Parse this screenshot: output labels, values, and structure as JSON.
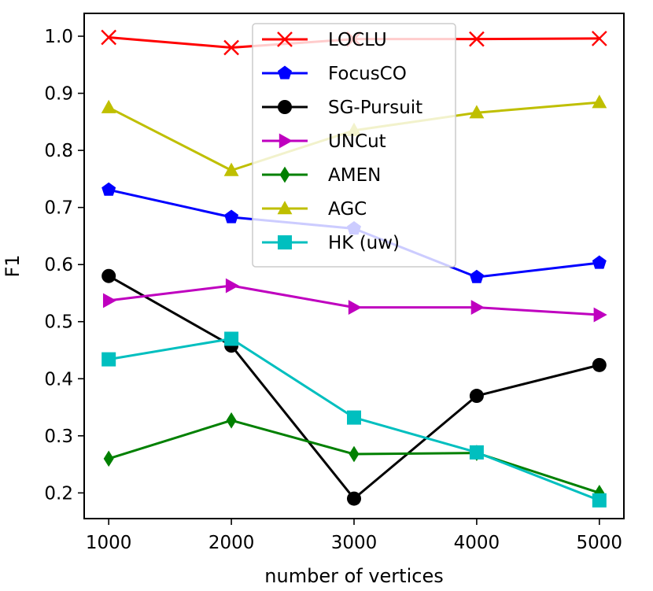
{
  "chart_data": {
    "type": "line",
    "title": "",
    "xlabel": "number of vertices",
    "ylabel": "F1",
    "x": [
      1000,
      2000,
      3000,
      4000,
      5000
    ],
    "xticks": [
      "1000",
      "2000",
      "3000",
      "4000",
      "5000"
    ],
    "yticks": [
      "0.2",
      "0.3",
      "0.4",
      "0.5",
      "0.6",
      "0.7",
      "0.8",
      "0.9",
      "1.0"
    ],
    "xlim": [
      800,
      5200
    ],
    "ylim": [
      0.155,
      1.04
    ],
    "grid": false,
    "legend_position": "top-center",
    "series": [
      {
        "name": "LOCLU",
        "color": "#ff0000",
        "marker": "x",
        "values": [
          0.998,
          0.98,
          0.995,
          0.995,
          0.996
        ]
      },
      {
        "name": "FocusCO",
        "color": "#0000ff",
        "marker": "pentagon",
        "values": [
          0.731,
          0.683,
          0.663,
          0.578,
          0.603
        ]
      },
      {
        "name": "SG-Pursuit",
        "color": "#000000",
        "marker": "circle",
        "values": [
          0.58,
          0.458,
          0.19,
          0.37,
          0.424
        ]
      },
      {
        "name": "UNCut",
        "color": "#bf00bf",
        "marker": "triangle-right",
        "values": [
          0.537,
          0.563,
          0.525,
          0.525,
          0.512
        ]
      },
      {
        "name": "AMEN",
        "color": "#008000",
        "marker": "diamond",
        "values": [
          0.26,
          0.327,
          0.268,
          0.27,
          0.2
        ]
      },
      {
        "name": "AGC",
        "color": "#bfbf00",
        "marker": "triangle-up",
        "values": [
          0.875,
          0.765,
          0.835,
          0.866,
          0.884
        ]
      },
      {
        "name": "HK (uw)",
        "color": "#00bfbf",
        "marker": "square",
        "values": [
          0.434,
          0.47,
          0.332,
          0.271,
          0.187
        ]
      }
    ]
  }
}
